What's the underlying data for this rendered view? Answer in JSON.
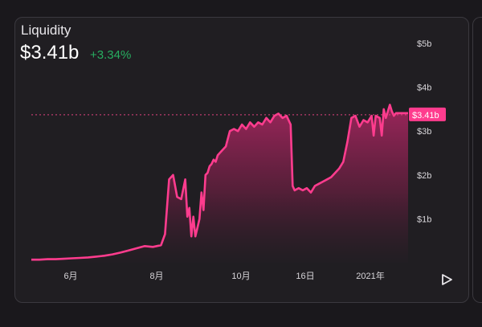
{
  "header": {
    "label": "Liquidity",
    "value": "$3.41b",
    "change": "+3.34%"
  },
  "colors": {
    "accent": "#ff3c8e",
    "positive": "#27ae60",
    "background": "#201e22"
  },
  "controls": {
    "play_icon": "play-icon"
  },
  "chart_data": {
    "type": "area",
    "title": "",
    "xlabel": "",
    "ylabel": "",
    "ylim": [
      0,
      5
    ],
    "y_unit": "billion USD",
    "y_ticks": [
      "$1b",
      "$2b",
      "$3b",
      "$4b",
      "$5b"
    ],
    "x_ticks": [
      "6月",
      "8月",
      "10月",
      "16日",
      "2021年"
    ],
    "current_value_label": "$3.41b",
    "current_value": 3.41,
    "grid": false,
    "series": [
      {
        "x": [
          0,
          2,
          4,
          6,
          8,
          10,
          12,
          14,
          16,
          18,
          20,
          22,
          24,
          26,
          28,
          30,
          32,
          33,
          34,
          35,
          36,
          37,
          38,
          38.5,
          39,
          39.5,
          40,
          40.5,
          41,
          41.5,
          42,
          42.5,
          43,
          43.5,
          44,
          44.5,
          45,
          45.5,
          46,
          47,
          48,
          49,
          50,
          51,
          52,
          53,
          54,
          55,
          56,
          57,
          58,
          59,
          60,
          61,
          62,
          63,
          64,
          64.5,
          65,
          66,
          67,
          68,
          69,
          70,
          71,
          72,
          73,
          74,
          75,
          76,
          77,
          78,
          79,
          80,
          81,
          82,
          83,
          84,
          84.5,
          85,
          86,
          86.5,
          87,
          87.5,
          88,
          88.5,
          89,
          89.5,
          90,
          91,
          92,
          93
        ],
        "y": [
          0.07,
          0.07,
          0.08,
          0.08,
          0.09,
          0.1,
          0.11,
          0.12,
          0.14,
          0.16,
          0.19,
          0.23,
          0.28,
          0.33,
          0.38,
          0.36,
          0.4,
          0.65,
          1.9,
          2.0,
          1.5,
          1.45,
          1.9,
          1.05,
          1.25,
          0.6,
          1.05,
          0.6,
          0.8,
          1.0,
          1.6,
          1.2,
          2.0,
          2.05,
          2.2,
          2.25,
          2.35,
          2.3,
          2.45,
          2.55,
          2.65,
          3.0,
          3.05,
          3.0,
          3.15,
          3.05,
          3.2,
          3.1,
          3.2,
          3.15,
          3.3,
          3.2,
          3.35,
          3.4,
          3.3,
          3.35,
          3.15,
          1.75,
          1.65,
          1.7,
          1.65,
          1.7,
          1.6,
          1.75,
          1.8,
          1.85,
          1.9,
          1.95,
          2.05,
          2.15,
          2.3,
          2.75,
          3.3,
          3.35,
          3.1,
          3.25,
          3.2,
          3.35,
          2.9,
          3.35,
          3.3,
          2.9,
          3.5,
          3.3,
          3.45,
          3.6,
          3.45,
          3.35,
          3.41,
          3.41,
          3.41,
          3.41
        ]
      }
    ]
  }
}
